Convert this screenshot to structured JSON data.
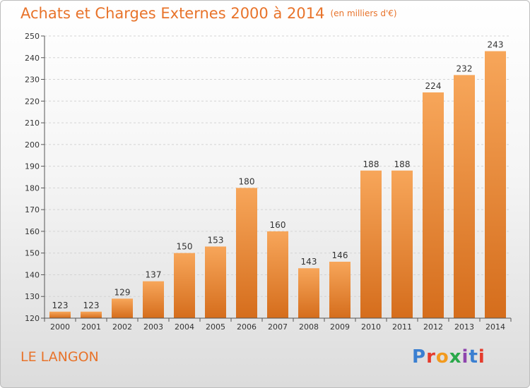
{
  "title": "Achats et Charges Externes 2000 à 2014",
  "subtitle": "(en milliers d'€)",
  "location": "LE LANGON",
  "logo": {
    "text": "Proxiti",
    "colors": [
      "#3a7fd1",
      "#e53b2c",
      "#f29a1e",
      "#2aa84a",
      "#8e44ad",
      "#3a7fd1",
      "#e53b2c"
    ]
  },
  "colors": {
    "accent": "#e8732a",
    "bar_top": "#f7a65a",
    "bar_bottom": "#d56d1c"
  },
  "chart_data": {
    "type": "bar",
    "categories": [
      "2000",
      "2001",
      "2002",
      "2003",
      "2004",
      "2005",
      "2006",
      "2007",
      "2008",
      "2009",
      "2010",
      "2011",
      "2012",
      "2013",
      "2014"
    ],
    "values": [
      123,
      123,
      129,
      137,
      150,
      153,
      180,
      160,
      143,
      146,
      188,
      188,
      224,
      232,
      243
    ],
    "ylim": [
      120,
      250
    ],
    "yticks": [
      120,
      130,
      140,
      150,
      160,
      170,
      180,
      190,
      200,
      210,
      220,
      230,
      240,
      250
    ],
    "grid": true
  }
}
